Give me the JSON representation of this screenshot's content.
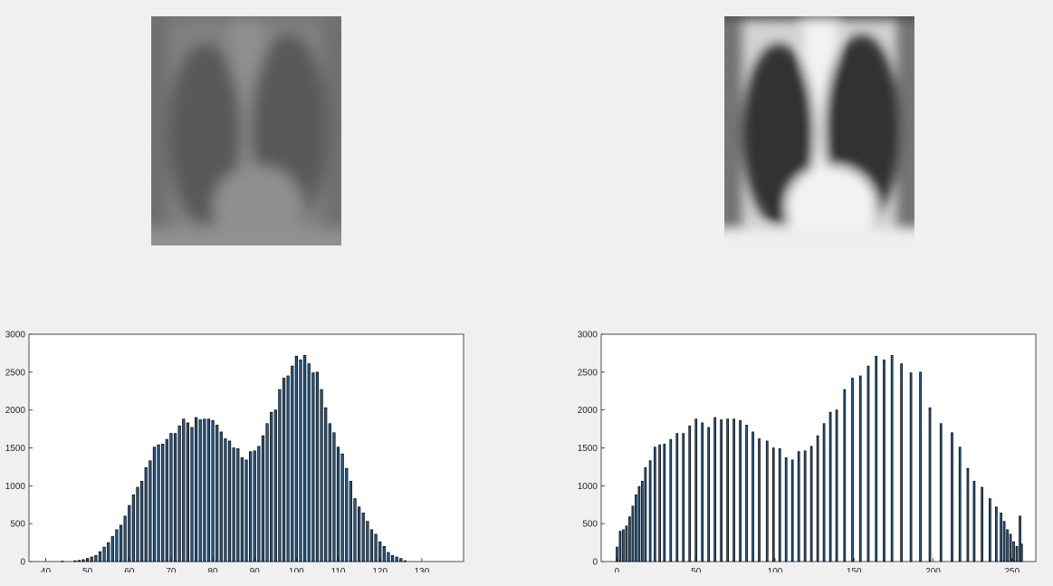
{
  "images": [
    {
      "name": "original-chest-xray",
      "style": "low-contrast"
    },
    {
      "name": "equalized-chest-xray",
      "style": "high-contrast"
    }
  ],
  "colors": {
    "background": "#f0f0f0",
    "axes_bg": "#ffffff",
    "bar_edge": "#000000",
    "bar_fill": "#2b5c8a",
    "axis": "#262626"
  },
  "chart_data": [
    {
      "type": "bar",
      "title": "",
      "xlabel": "",
      "ylabel": "",
      "xlim": [
        36,
        140
      ],
      "ylim": [
        0,
        3000
      ],
      "xticks": [
        40,
        50,
        60,
        70,
        80,
        90,
        100,
        110,
        120,
        130
      ],
      "yticks": [
        0,
        500,
        1000,
        1500,
        2000,
        2500,
        3000
      ],
      "grid": false,
      "x": [
        44,
        47,
        48,
        49,
        50,
        51,
        52,
        53,
        54,
        55,
        56,
        57,
        58,
        59,
        60,
        61,
        62,
        63,
        64,
        65,
        66,
        67,
        68,
        69,
        70,
        71,
        72,
        73,
        74,
        75,
        76,
        77,
        78,
        79,
        80,
        81,
        82,
        83,
        84,
        85,
        86,
        87,
        88,
        89,
        90,
        91,
        92,
        93,
        94,
        95,
        96,
        97,
        98,
        99,
        100,
        101,
        102,
        103,
        104,
        105,
        106,
        107,
        108,
        109,
        110,
        111,
        112,
        113,
        114,
        115,
        116,
        117,
        118,
        119,
        120,
        121,
        122,
        123,
        124,
        125,
        126
      ],
      "values": [
        5,
        10,
        15,
        25,
        40,
        60,
        80,
        130,
        190,
        250,
        330,
        420,
        480,
        600,
        740,
        880,
        980,
        1060,
        1240,
        1330,
        1510,
        1540,
        1550,
        1610,
        1690,
        1690,
        1790,
        1880,
        1830,
        1770,
        1900,
        1870,
        1880,
        1880,
        1860,
        1800,
        1710,
        1620,
        1590,
        1500,
        1490,
        1370,
        1340,
        1450,
        1460,
        1520,
        1660,
        1820,
        1970,
        2000,
        2270,
        2420,
        2450,
        2580,
        2710,
        2660,
        2720,
        2610,
        2490,
        2500,
        2270,
        2030,
        1820,
        1700,
        1510,
        1420,
        1230,
        1060,
        830,
        720,
        640,
        530,
        420,
        360,
        260,
        200,
        120,
        80,
        60,
        40,
        10
      ]
    },
    {
      "type": "bar",
      "title": "",
      "xlabel": "",
      "ylabel": "",
      "xlim": [
        -10,
        265
      ],
      "ylim": [
        0,
        3000
      ],
      "xticks": [
        0,
        50,
        100,
        150,
        200,
        250
      ],
      "yticks": [
        0,
        500,
        1000,
        1500,
        2000,
        2500,
        3000
      ],
      "grid": false,
      "x": [
        0,
        2,
        4,
        6,
        8,
        10,
        12,
        14,
        16,
        18,
        21,
        24,
        27,
        30,
        34,
        38,
        42,
        46,
        50,
        54,
        58,
        62,
        66,
        70,
        74,
        78,
        82,
        86,
        90,
        95,
        99,
        103,
        107,
        111,
        115,
        119,
        123,
        127,
        131,
        135,
        139,
        144,
        149,
        154,
        159,
        164,
        169,
        174,
        180,
        186,
        192,
        198,
        205,
        212,
        217,
        222,
        226,
        231,
        236,
        240,
        243,
        245,
        247,
        249,
        251,
        253,
        255,
        256
      ],
      "values": [
        190,
        400,
        420,
        470,
        590,
        730,
        880,
        990,
        1060,
        1240,
        1330,
        1510,
        1540,
        1550,
        1610,
        1690,
        1690,
        1790,
        1880,
        1830,
        1770,
        1900,
        1870,
        1880,
        1880,
        1860,
        1800,
        1710,
        1620,
        1590,
        1500,
        1490,
        1370,
        1340,
        1450,
        1460,
        1520,
        1660,
        1820,
        1970,
        2000,
        2270,
        2420,
        2450,
        2580,
        2710,
        2660,
        2720,
        2610,
        2490,
        2500,
        2030,
        1820,
        1700,
        1510,
        1230,
        1060,
        980,
        830,
        720,
        640,
        530,
        420,
        360,
        260,
        200,
        600,
        230
      ]
    }
  ]
}
